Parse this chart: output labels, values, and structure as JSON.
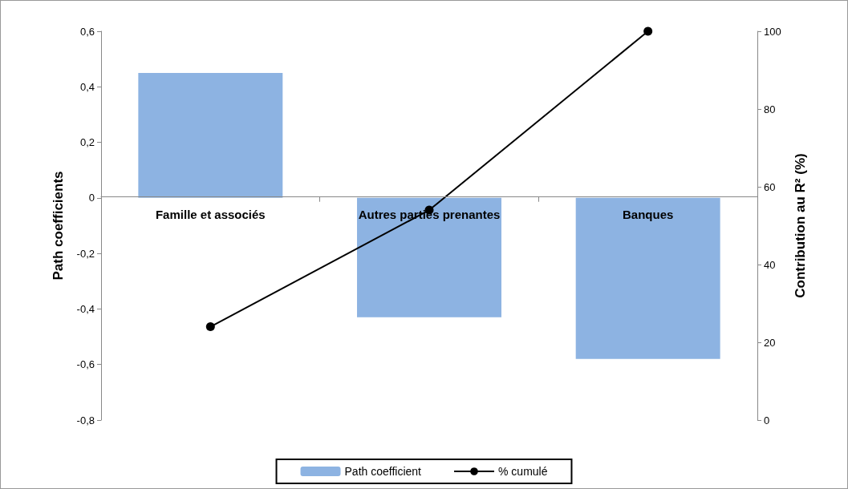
{
  "chart_data": {
    "type": "bar",
    "ylabel": "Path coefficients",
    "y2label": "Contribution au R² (%)",
    "categories": [
      "Famille et associés",
      "Autres parties prenantes",
      "Banques"
    ],
    "series": [
      {
        "name": "Path coefficient",
        "color": "#8db3e2",
        "values": [
          0.45,
          -0.43,
          -0.58
        ]
      },
      {
        "name": "% cumulé",
        "type": "line",
        "axis": "y2",
        "color": "#000000",
        "marker": "circle",
        "values": [
          24,
          54,
          100
        ]
      }
    ],
    "ylim": [
      -0.8,
      0.6
    ],
    "yticks": [
      {
        "value": -0.8,
        "label": "-0,8"
      },
      {
        "value": -0.6,
        "label": "-0,6"
      },
      {
        "value": -0.4,
        "label": "-0,4"
      },
      {
        "value": -0.2,
        "label": "-0,2"
      },
      0,
      {
        "value": 0.2,
        "label": "0,2"
      },
      {
        "value": 0.4,
        "label": "0,4"
      },
      {
        "value": 0.6,
        "label": "0,6"
      }
    ],
    "y2lim": [
      0,
      100
    ],
    "y2ticks": [
      0,
      20,
      40,
      60,
      80,
      100
    ],
    "grid": false,
    "legend": "bottom"
  }
}
